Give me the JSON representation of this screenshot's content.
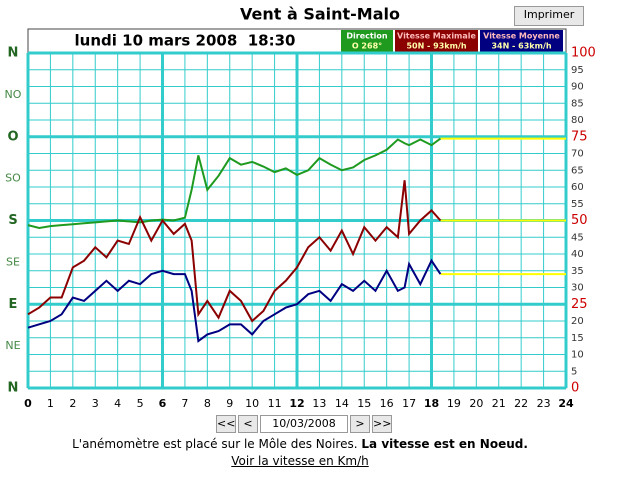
{
  "chart_data": {
    "type": "line",
    "title": "Vent à Saint-Malo",
    "subtitle": "lundi 10 mars 2008  18:30",
    "x": [
      0,
      0.5,
      1,
      1.5,
      2,
      2.5,
      3,
      3.5,
      4,
      4.5,
      5,
      5.5,
      6,
      6.5,
      7,
      7.3,
      7.6,
      8,
      8.5,
      9,
      9.5,
      10,
      10.5,
      11,
      11.5,
      12,
      12.5,
      13,
      13.5,
      14,
      14.5,
      15,
      15.5,
      16,
      16.5,
      16.8,
      17,
      17.5,
      18,
      18.4
    ],
    "xlim": [
      0,
      24
    ],
    "xticks": [
      0,
      1,
      2,
      3,
      4,
      5,
      6,
      7,
      8,
      9,
      10,
      11,
      12,
      13,
      14,
      15,
      16,
      17,
      18,
      19,
      20,
      21,
      22,
      23,
      24
    ],
    "x_major_every": 6,
    "ylim": [
      0,
      100
    ],
    "yticks": [
      0,
      5,
      10,
      15,
      20,
      25,
      30,
      35,
      40,
      45,
      50,
      55,
      60,
      65,
      70,
      75,
      80,
      85,
      90,
      95,
      100
    ],
    "y_major_every": 25,
    "y2lim": [
      0,
      360
    ],
    "y2ticks": [
      {
        "value": 0,
        "label": "N"
      },
      {
        "value": 45,
        "label": "NE"
      },
      {
        "value": 90,
        "label": "E"
      },
      {
        "value": 135,
        "label": "SE"
      },
      {
        "value": 180,
        "label": "S"
      },
      {
        "value": 225,
        "label": "SO"
      },
      {
        "value": 270,
        "label": "O"
      },
      {
        "value": 315,
        "label": "NO"
      },
      {
        "value": 360,
        "label": "N"
      }
    ],
    "grid": true,
    "current_color": "#ffff00",
    "series": [
      {
        "name": "Direction",
        "current": "O 268°",
        "color": "#1f9a1f",
        "axis": "y2",
        "values": [
          175,
          172,
          174,
          175,
          176,
          177,
          178,
          179,
          180,
          179,
          178,
          180,
          181,
          180,
          183,
          213,
          250,
          213,
          228,
          247,
          240,
          243,
          238,
          232,
          236,
          229,
          234,
          247,
          240,
          234,
          237,
          245,
          250,
          256,
          267,
          263,
          261,
          267,
          261,
          268
        ]
      },
      {
        "name": "Vitesse Maximale",
        "current": "50N - 93km/h",
        "color": "#8b0000",
        "values": [
          22,
          24,
          27,
          27,
          36,
          38,
          42,
          39,
          44,
          43,
          51,
          44,
          50,
          46,
          49,
          44,
          22,
          26,
          21,
          29,
          26,
          20,
          23,
          29,
          32,
          36,
          42,
          45,
          41,
          47,
          40,
          48,
          44,
          48,
          45,
          62,
          46,
          50,
          53,
          50
        ]
      },
      {
        "name": "Vitesse Moyenne",
        "current": "34N - 63km/h",
        "color": "#000080",
        "values": [
          18,
          19,
          20,
          22,
          27,
          26,
          29,
          32,
          29,
          32,
          31,
          34,
          35,
          34,
          34,
          29,
          14,
          16,
          17,
          19,
          19,
          16,
          20,
          22,
          24,
          25,
          28,
          29,
          26,
          31,
          29,
          32,
          29,
          35,
          29,
          30,
          37,
          31,
          38,
          34
        ]
      }
    ]
  },
  "ui": {
    "print_button": "Imprimer",
    "nav": [
      "<<",
      "<",
      "10/03/2008",
      ">",
      ">>"
    ],
    "note": "L'anémomètre est placé sur le Môle des Noires.",
    "note_bold": "La vitesse est en Noeud.",
    "link": "Voir la vitesse en Km/h"
  }
}
